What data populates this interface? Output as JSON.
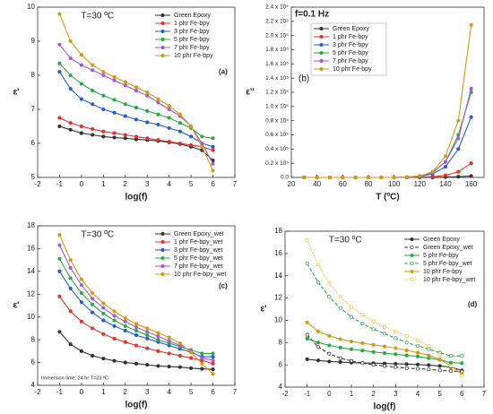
{
  "chart_data": [
    {
      "type": "line",
      "title": "T=30 ºC",
      "panel_label": "(a)",
      "x_label": "log(f)",
      "y_label": "ε'",
      "xlim": [
        -2,
        7
      ],
      "xticks": [
        -2,
        -1,
        0,
        1,
        2,
        3,
        4,
        5,
        6,
        7
      ],
      "ylim": [
        5,
        10
      ],
      "yticks": [
        5,
        6,
        7,
        8,
        9,
        10
      ],
      "legend": "upper right",
      "x": [
        -1,
        -0.5,
        0,
        0.5,
        1,
        1.5,
        2,
        2.5,
        3,
        3.5,
        4,
        4.5,
        5,
        5.5,
        6
      ],
      "series": [
        {
          "name": "Green Epoxy",
          "color": "#333333",
          "values": [
            6.5,
            6.4,
            6.3,
            6.25,
            6.2,
            6.17,
            6.15,
            6.12,
            6.1,
            6.07,
            6.03,
            5.98,
            5.9,
            5.8,
            5.5
          ]
        },
        {
          "name": "1 phr Fe-bpy",
          "color": "#e8312a",
          "values": [
            6.75,
            6.6,
            6.5,
            6.42,
            6.35,
            6.3,
            6.25,
            6.2,
            6.15,
            6.1,
            6.05,
            6.0,
            5.95,
            5.9,
            5.8
          ]
        },
        {
          "name": "3 phr Fe-bpy",
          "color": "#2a5bd7",
          "values": [
            8.1,
            7.6,
            7.3,
            7.15,
            7.0,
            6.9,
            6.8,
            6.7,
            6.62,
            6.55,
            6.45,
            6.35,
            6.2,
            6.0,
            5.9
          ]
        },
        {
          "name": "5 phr Fe-bpy",
          "color": "#2aa84a",
          "values": [
            8.35,
            8.0,
            7.75,
            7.55,
            7.4,
            7.28,
            7.15,
            7.05,
            6.95,
            6.85,
            6.75,
            6.6,
            6.45,
            6.2,
            6.15
          ]
        },
        {
          "name": "7 phr Fe-bpy",
          "color": "#a35ad6",
          "values": [
            8.9,
            8.5,
            8.3,
            8.15,
            8.0,
            7.85,
            7.7,
            7.55,
            7.4,
            7.2,
            7.0,
            6.8,
            6.5,
            6.0,
            5.4
          ]
        },
        {
          "name": "10 phr Fe-bpy",
          "color": "#d49a10",
          "values": [
            9.8,
            9.0,
            8.6,
            8.3,
            8.1,
            7.95,
            7.8,
            7.65,
            7.5,
            7.3,
            7.1,
            6.85,
            6.5,
            5.9,
            5.2
          ]
        }
      ]
    },
    {
      "type": "line",
      "title": "f=0.1 Hz",
      "panel_label": "(b)",
      "x_label": "T (ºC)",
      "y_label": "ε''",
      "xlim": [
        20,
        170
      ],
      "xticks": [
        20,
        40,
        60,
        80,
        100,
        120,
        140,
        160
      ],
      "ylim": [
        0,
        240000
      ],
      "yticks": [
        {
          "value": 0,
          "label": "0.0"
        },
        {
          "value": 20000,
          "label": "0.2 x 10⁵"
        },
        {
          "value": 40000,
          "label": "0.4 x 10⁵"
        },
        {
          "value": 60000,
          "label": "0.6 x 10⁵"
        },
        {
          "value": 80000,
          "label": "0.8 x 10⁵"
        },
        {
          "value": 100000,
          "label": "1.0 x 10⁵"
        },
        {
          "value": 120000,
          "label": "1.2 x 10⁵"
        },
        {
          "value": 140000,
          "label": "1.4 x 10⁵"
        },
        {
          "value": 160000,
          "label": "1.6 x 10⁵"
        },
        {
          "value": 180000,
          "label": "1.8 x 10⁵"
        },
        {
          "value": 200000,
          "label": "2.0 x 10⁵"
        },
        {
          "value": 220000,
          "label": "2.2 x 10⁵"
        },
        {
          "value": 240000,
          "label": "2.4 x 10⁵"
        }
      ],
      "legend": "upper left",
      "x": [
        30,
        40,
        50,
        60,
        70,
        80,
        90,
        100,
        110,
        120,
        130,
        140,
        150,
        160
      ],
      "series": [
        {
          "name": "Green Epoxy",
          "color": "#333333",
          "values": [
            0,
            0,
            0,
            0,
            0,
            0,
            0,
            0,
            0,
            0,
            0,
            500,
            1000,
            2000
          ]
        },
        {
          "name": "1 phr Fe-bpy",
          "color": "#e8312a",
          "values": [
            0,
            0,
            0,
            0,
            0,
            0,
            0,
            0,
            0,
            500,
            1000,
            3000,
            8000,
            20000
          ]
        },
        {
          "name": "3 phr Fe-bpy",
          "color": "#2a5bd7",
          "values": [
            0,
            0,
            0,
            0,
            0,
            0,
            0,
            0,
            500,
            1500,
            5000,
            15000,
            40000,
            85000
          ]
        },
        {
          "name": "5 phr Fe-bpy",
          "color": "#2aa84a",
          "values": [
            0,
            0,
            0,
            0,
            0,
            0,
            0,
            0,
            500,
            2000,
            7000,
            22000,
            60000,
            120000
          ]
        },
        {
          "name": "7 phr Fe-bpy",
          "color": "#a35ad6",
          "values": [
            0,
            0,
            0,
            0,
            0,
            0,
            0,
            0,
            500,
            2000,
            7000,
            22000,
            55000,
            125000
          ]
        },
        {
          "name": "10 phr Fe-bpy",
          "color": "#d49a10",
          "values": [
            0,
            0,
            0,
            0,
            0,
            0,
            0,
            0,
            500,
            2000,
            8000,
            30000,
            80000,
            215000
          ]
        }
      ]
    },
    {
      "type": "line",
      "title": "T=30 ºC",
      "panel_label": "(c)",
      "note": "Immersion time: 24 hr T=23 ºC",
      "x_label": "log(f)",
      "y_label": "ε'",
      "xlim": [
        -2,
        7
      ],
      "xticks": [
        -2,
        -1,
        0,
        1,
        2,
        3,
        4,
        5,
        6,
        7
      ],
      "ylim": [
        4,
        18
      ],
      "yticks": [
        4,
        6,
        8,
        10,
        12,
        14,
        16,
        18
      ],
      "legend": "upper right",
      "x": [
        -1,
        -0.5,
        0,
        0.5,
        1,
        1.5,
        2,
        2.5,
        3,
        3.5,
        4,
        4.5,
        5,
        5.5,
        6
      ],
      "series": [
        {
          "name": "Green Epoxy_wet",
          "color": "#333333",
          "values": [
            8.7,
            7.6,
            7.0,
            6.6,
            6.35,
            6.15,
            6.0,
            5.9,
            5.8,
            5.7,
            5.65,
            5.6,
            5.5,
            5.45,
            5.4
          ]
        },
        {
          "name": "1 phr Fe-bpy_wet",
          "color": "#e8312a",
          "values": [
            11.8,
            10.5,
            9.6,
            9.0,
            8.5,
            8.1,
            7.8,
            7.5,
            7.25,
            7.0,
            6.8,
            6.6,
            6.4,
            6.2,
            5.9
          ]
        },
        {
          "name": "3 phr Fe-bpy_wet",
          "color": "#2a5bd7",
          "values": [
            14.0,
            12.5,
            11.3,
            10.4,
            9.7,
            9.2,
            8.8,
            8.4,
            8.1,
            7.8,
            7.5,
            7.2,
            6.9,
            6.5,
            6.5
          ]
        },
        {
          "name": "5 phr Fe-bpy_wet",
          "color": "#2aa84a",
          "values": [
            15.1,
            13.4,
            12.1,
            11.1,
            10.3,
            9.7,
            9.2,
            8.8,
            8.4,
            8.0,
            7.7,
            7.4,
            7.1,
            6.8,
            6.8
          ]
        },
        {
          "name": "7 phr Fe-bpy_wet",
          "color": "#a35ad6",
          "values": [
            16.3,
            14.3,
            12.8,
            11.6,
            10.8,
            10.1,
            9.6,
            9.1,
            8.7,
            8.3,
            7.9,
            7.5,
            7.0,
            6.4,
            6.2
          ]
        },
        {
          "name": "10 phr Fe-bpy_wet",
          "color": "#d49a10",
          "values": [
            17.2,
            15.0,
            13.3,
            12.1,
            11.2,
            10.5,
            9.9,
            9.4,
            9.0,
            8.6,
            8.2,
            7.7,
            6.9,
            5.9,
            5.0
          ]
        }
      ]
    },
    {
      "type": "line",
      "title": "T=30 ºC",
      "panel_label": "(d)",
      "x_label": "log(f)",
      "y_label": "ε'",
      "xlim": [
        -2,
        7
      ],
      "xticks": [
        -2,
        -1,
        0,
        1,
        2,
        3,
        4,
        5,
        6,
        7
      ],
      "ylim": [
        4,
        18
      ],
      "yticks": [
        4,
        6,
        8,
        10,
        12,
        14,
        16,
        18
      ],
      "legend": "upper right",
      "x": [
        -1,
        -0.5,
        0,
        0.5,
        1,
        1.5,
        2,
        2.5,
        3,
        3.5,
        4,
        4.5,
        5,
        5.5,
        6
      ],
      "series": [
        {
          "name": "Green Epoxy",
          "color": "#333333",
          "line_style": "solid",
          "values": [
            6.5,
            6.4,
            6.3,
            6.25,
            6.2,
            6.17,
            6.15,
            6.12,
            6.1,
            6.07,
            6.03,
            5.98,
            5.9,
            5.8,
            5.5
          ]
        },
        {
          "name": "Green Epoxy_wet",
          "color": "#333333",
          "line_style": "dashed",
          "values": [
            8.7,
            7.6,
            7.0,
            6.6,
            6.35,
            6.15,
            6.0,
            5.9,
            5.8,
            5.7,
            5.65,
            5.6,
            5.5,
            5.45,
            5.4
          ]
        },
        {
          "name": "5 phr Fe-bpy",
          "color": "#2aa84a",
          "line_style": "solid",
          "values": [
            8.35,
            8.0,
            7.75,
            7.55,
            7.4,
            7.28,
            7.15,
            7.05,
            6.95,
            6.85,
            6.75,
            6.6,
            6.45,
            6.2,
            6.15
          ]
        },
        {
          "name": "5 phr Fe-bpy_wet",
          "color": "#2aa84a",
          "line_style": "dashed",
          "values": [
            15.1,
            13.4,
            12.1,
            11.1,
            10.3,
            9.7,
            9.2,
            8.8,
            8.4,
            8.0,
            7.7,
            7.4,
            7.1,
            6.8,
            6.8
          ]
        },
        {
          "name": "10 phr Fe-bpy",
          "color": "#d49a10",
          "line_style": "solid",
          "values": [
            9.8,
            9.0,
            8.6,
            8.3,
            8.1,
            7.95,
            7.8,
            7.65,
            7.5,
            7.3,
            7.1,
            6.85,
            6.5,
            5.9,
            5.2
          ]
        },
        {
          "name": "10 phr Fe-bpy_wet",
          "color": "#f0c040",
          "line_style": "dotted",
          "values": [
            17.2,
            15.0,
            13.3,
            12.1,
            11.2,
            10.5,
            9.9,
            9.4,
            9.0,
            8.6,
            8.2,
            7.7,
            6.9,
            5.9,
            5.0
          ]
        }
      ]
    }
  ]
}
